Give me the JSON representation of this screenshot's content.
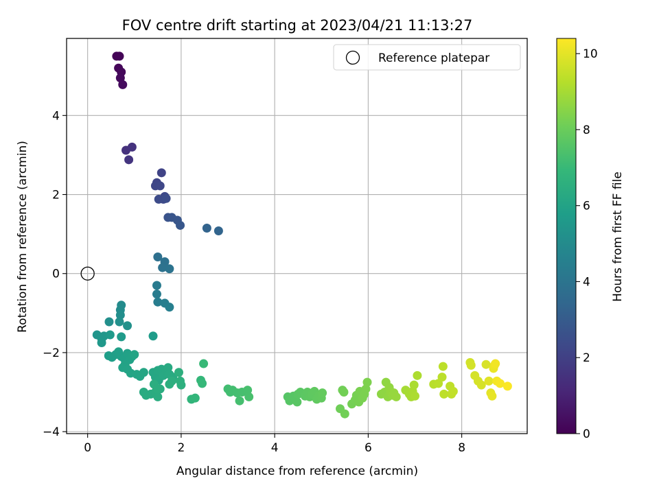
{
  "chart_data": {
    "type": "scatter",
    "title": "FOV centre drift starting at 2023/04/21 11:13:27",
    "xlabel": "Angular distance from reference (arcmin)",
    "ylabel": "Rotation from reference (arcmin)",
    "xlim": [
      -0.45,
      9.4
    ],
    "ylim": [
      -4.05,
      5.95
    ],
    "xticks": [
      0,
      2,
      4,
      6,
      8
    ],
    "yticks": [
      -4,
      -2,
      0,
      2,
      4
    ],
    "grid": true,
    "legend": {
      "location": "top-right",
      "entries": [
        "Reference platepar"
      ]
    },
    "reference_point": {
      "x": 0,
      "y": 0
    },
    "colorbar": {
      "label": "Hours from first FF file",
      "range": [
        0,
        10.4
      ],
      "ticks": [
        0,
        2,
        4,
        6,
        8,
        10
      ],
      "colormap": [
        "#440154",
        "#482878",
        "#3e4989",
        "#31688e",
        "#26828e",
        "#1f9e89",
        "#35b779",
        "#6ece58",
        "#b5de2b",
        "#fde725"
      ]
    },
    "points": [
      {
        "x": 0.62,
        "y": 5.5,
        "c": 0.05
      },
      {
        "x": 0.68,
        "y": 5.5,
        "c": 0.1
      },
      {
        "x": 0.66,
        "y": 5.2,
        "c": 0.15
      },
      {
        "x": 0.72,
        "y": 5.1,
        "c": 0.2
      },
      {
        "x": 0.7,
        "y": 4.95,
        "c": 0.25
      },
      {
        "x": 0.75,
        "y": 4.78,
        "c": 0.3
      },
      {
        "x": 0.82,
        "y": 3.12,
        "c": 1.5
      },
      {
        "x": 0.95,
        "y": 3.2,
        "c": 1.55
      },
      {
        "x": 0.88,
        "y": 2.88,
        "c": 1.6
      },
      {
        "x": 1.58,
        "y": 2.55,
        "c": 2.1
      },
      {
        "x": 1.48,
        "y": 2.3,
        "c": 2.15
      },
      {
        "x": 1.45,
        "y": 2.22,
        "c": 2.2
      },
      {
        "x": 1.55,
        "y": 2.22,
        "c": 2.25
      },
      {
        "x": 1.65,
        "y": 1.95,
        "c": 2.3
      },
      {
        "x": 1.62,
        "y": 1.88,
        "c": 2.35
      },
      {
        "x": 1.52,
        "y": 1.88,
        "c": 2.4
      },
      {
        "x": 1.68,
        "y": 1.9,
        "c": 2.45
      },
      {
        "x": 1.72,
        "y": 1.42,
        "c": 2.7
      },
      {
        "x": 1.8,
        "y": 1.42,
        "c": 2.75
      },
      {
        "x": 1.92,
        "y": 1.35,
        "c": 2.8
      },
      {
        "x": 1.98,
        "y": 1.22,
        "c": 2.85
      },
      {
        "x": 2.55,
        "y": 1.15,
        "c": 3.3
      },
      {
        "x": 2.8,
        "y": 1.08,
        "c": 3.35
      },
      {
        "x": 1.5,
        "y": 0.42,
        "c": 3.8
      },
      {
        "x": 1.65,
        "y": 0.3,
        "c": 3.85
      },
      {
        "x": 1.6,
        "y": 0.15,
        "c": 3.9
      },
      {
        "x": 1.75,
        "y": 0.12,
        "c": 3.95
      },
      {
        "x": 1.48,
        "y": -0.3,
        "c": 4.3
      },
      {
        "x": 1.48,
        "y": -0.52,
        "c": 4.35
      },
      {
        "x": 1.5,
        "y": -0.72,
        "c": 4.4
      },
      {
        "x": 1.65,
        "y": -0.75,
        "c": 4.45
      },
      {
        "x": 1.75,
        "y": -0.85,
        "c": 4.5
      },
      {
        "x": 0.72,
        "y": -0.8,
        "c": 5.0
      },
      {
        "x": 0.7,
        "y": -0.92,
        "c": 5.05
      },
      {
        "x": 0.7,
        "y": -1.05,
        "c": 5.1
      },
      {
        "x": 0.46,
        "y": -1.22,
        "c": 5.15
      },
      {
        "x": 0.68,
        "y": -1.22,
        "c": 5.2
      },
      {
        "x": 0.85,
        "y": -1.32,
        "c": 5.25
      },
      {
        "x": 0.2,
        "y": -1.55,
        "c": 5.4
      },
      {
        "x": 0.3,
        "y": -1.65,
        "c": 5.45
      },
      {
        "x": 0.35,
        "y": -1.58,
        "c": 5.5
      },
      {
        "x": 0.3,
        "y": -1.75,
        "c": 5.55
      },
      {
        "x": 0.48,
        "y": -1.55,
        "c": 5.6
      },
      {
        "x": 0.72,
        "y": -1.6,
        "c": 5.65
      },
      {
        "x": 1.4,
        "y": -1.58,
        "c": 5.7
      },
      {
        "x": 0.45,
        "y": -2.08,
        "c": 5.8
      },
      {
        "x": 0.52,
        "y": -2.12,
        "c": 5.82
      },
      {
        "x": 0.6,
        "y": -2.05,
        "c": 5.84
      },
      {
        "x": 0.66,
        "y": -1.98,
        "c": 5.86
      },
      {
        "x": 0.72,
        "y": -2.1,
        "c": 5.88
      },
      {
        "x": 0.78,
        "y": -2.15,
        "c": 5.9
      },
      {
        "x": 0.85,
        "y": -2.02,
        "c": 5.92
      },
      {
        "x": 0.9,
        "y": -2.18,
        "c": 5.94
      },
      {
        "x": 0.95,
        "y": -2.1,
        "c": 5.96
      },
      {
        "x": 0.8,
        "y": -2.3,
        "c": 5.98
      },
      {
        "x": 0.75,
        "y": -2.38,
        "c": 6.0
      },
      {
        "x": 0.85,
        "y": -2.42,
        "c": 6.02
      },
      {
        "x": 0.92,
        "y": -2.52,
        "c": 6.04
      },
      {
        "x": 1.0,
        "y": -2.05,
        "c": 6.06
      },
      {
        "x": 1.05,
        "y": -2.55,
        "c": 6.08
      },
      {
        "x": 1.12,
        "y": -2.6,
        "c": 6.1
      },
      {
        "x": 1.2,
        "y": -2.5,
        "c": 6.12
      },
      {
        "x": 1.4,
        "y": -2.5,
        "c": 6.14
      },
      {
        "x": 1.45,
        "y": -2.62,
        "c": 6.16
      },
      {
        "x": 1.5,
        "y": -2.45,
        "c": 6.18
      },
      {
        "x": 1.52,
        "y": -2.7,
        "c": 6.2
      },
      {
        "x": 1.58,
        "y": -2.42,
        "c": 6.22
      },
      {
        "x": 1.62,
        "y": -2.58,
        "c": 6.24
      },
      {
        "x": 1.68,
        "y": -2.45,
        "c": 6.26
      },
      {
        "x": 1.72,
        "y": -2.38,
        "c": 6.28
      },
      {
        "x": 1.75,
        "y": -2.55,
        "c": 6.3
      },
      {
        "x": 1.82,
        "y": -2.62,
        "c": 6.32
      },
      {
        "x": 1.2,
        "y": -3.0,
        "c": 6.34
      },
      {
        "x": 1.25,
        "y": -3.08,
        "c": 6.36
      },
      {
        "x": 1.35,
        "y": -3.05,
        "c": 6.38
      },
      {
        "x": 1.45,
        "y": -3.0,
        "c": 6.4
      },
      {
        "x": 1.5,
        "y": -3.12,
        "c": 6.42
      },
      {
        "x": 1.55,
        "y": -2.92,
        "c": 6.44
      },
      {
        "x": 1.42,
        "y": -2.8,
        "c": 6.46
      },
      {
        "x": 1.48,
        "y": -2.92,
        "c": 6.48
      },
      {
        "x": 1.75,
        "y": -2.8,
        "c": 6.5
      },
      {
        "x": 1.8,
        "y": -2.72,
        "c": 6.52
      },
      {
        "x": 1.95,
        "y": -2.5,
        "c": 6.54
      },
      {
        "x": 1.98,
        "y": -2.72,
        "c": 6.56
      },
      {
        "x": 2.0,
        "y": -2.82,
        "c": 6.58
      },
      {
        "x": 2.22,
        "y": -3.18,
        "c": 6.8
      },
      {
        "x": 2.3,
        "y": -3.15,
        "c": 6.85
      },
      {
        "x": 2.42,
        "y": -2.7,
        "c": 6.9
      },
      {
        "x": 2.45,
        "y": -2.78,
        "c": 6.95
      },
      {
        "x": 2.48,
        "y": -2.28,
        "c": 7.0
      },
      {
        "x": 3.0,
        "y": -2.92,
        "c": 7.2
      },
      {
        "x": 3.05,
        "y": -3.0,
        "c": 7.22
      },
      {
        "x": 3.1,
        "y": -2.95,
        "c": 7.24
      },
      {
        "x": 3.2,
        "y": -3.02,
        "c": 7.26
      },
      {
        "x": 3.25,
        "y": -3.22,
        "c": 7.28
      },
      {
        "x": 3.3,
        "y": -3.0,
        "c": 7.3
      },
      {
        "x": 3.42,
        "y": -2.95,
        "c": 7.32
      },
      {
        "x": 3.45,
        "y": -3.12,
        "c": 7.34
      },
      {
        "x": 4.28,
        "y": -3.12,
        "c": 7.6
      },
      {
        "x": 4.32,
        "y": -3.22,
        "c": 7.62
      },
      {
        "x": 4.4,
        "y": -3.1,
        "c": 7.64
      },
      {
        "x": 4.48,
        "y": -3.25,
        "c": 7.66
      },
      {
        "x": 4.5,
        "y": -3.05,
        "c": 7.68
      },
      {
        "x": 4.55,
        "y": -3.0,
        "c": 7.7
      },
      {
        "x": 4.65,
        "y": -3.1,
        "c": 7.72
      },
      {
        "x": 4.7,
        "y": -3.0,
        "c": 7.74
      },
      {
        "x": 4.75,
        "y": -3.12,
        "c": 7.76
      },
      {
        "x": 4.8,
        "y": -3.05,
        "c": 7.78
      },
      {
        "x": 4.85,
        "y": -2.98,
        "c": 7.8
      },
      {
        "x": 4.9,
        "y": -3.18,
        "c": 7.82
      },
      {
        "x": 4.95,
        "y": -3.08,
        "c": 7.84
      },
      {
        "x": 5.0,
        "y": -3.15,
        "c": 7.86
      },
      {
        "x": 5.02,
        "y": -3.02,
        "c": 7.88
      },
      {
        "x": 5.4,
        "y": -3.42,
        "c": 8.1
      },
      {
        "x": 5.45,
        "y": -2.95,
        "c": 8.12
      },
      {
        "x": 5.5,
        "y": -3.55,
        "c": 8.14
      },
      {
        "x": 5.48,
        "y": -3.0,
        "c": 8.16
      },
      {
        "x": 5.65,
        "y": -3.3,
        "c": 8.18
      },
      {
        "x": 5.72,
        "y": -3.2,
        "c": 8.2
      },
      {
        "x": 5.75,
        "y": -3.08,
        "c": 8.22
      },
      {
        "x": 5.8,
        "y": -3.25,
        "c": 8.24
      },
      {
        "x": 5.82,
        "y": -2.98,
        "c": 8.26
      },
      {
        "x": 5.88,
        "y": -3.15,
        "c": 8.28
      },
      {
        "x": 5.92,
        "y": -3.05,
        "c": 8.3
      },
      {
        "x": 5.95,
        "y": -2.92,
        "c": 8.32
      },
      {
        "x": 5.98,
        "y": -2.75,
        "c": 8.34
      },
      {
        "x": 6.28,
        "y": -3.05,
        "c": 8.6
      },
      {
        "x": 6.35,
        "y": -3.0,
        "c": 8.62
      },
      {
        "x": 6.38,
        "y": -2.75,
        "c": 8.64
      },
      {
        "x": 6.42,
        "y": -3.12,
        "c": 8.66
      },
      {
        "x": 6.45,
        "y": -2.88,
        "c": 8.68
      },
      {
        "x": 6.48,
        "y": -2.98,
        "c": 8.7
      },
      {
        "x": 6.52,
        "y": -3.08,
        "c": 8.72
      },
      {
        "x": 6.55,
        "y": -3.02,
        "c": 8.74
      },
      {
        "x": 6.6,
        "y": -3.12,
        "c": 8.76
      },
      {
        "x": 6.8,
        "y": -2.95,
        "c": 9.0
      },
      {
        "x": 6.88,
        "y": -3.05,
        "c": 9.02
      },
      {
        "x": 6.92,
        "y": -3.12,
        "c": 9.04
      },
      {
        "x": 6.95,
        "y": -2.98,
        "c": 9.06
      },
      {
        "x": 6.98,
        "y": -2.82,
        "c": 9.08
      },
      {
        "x": 7.0,
        "y": -3.1,
        "c": 9.1
      },
      {
        "x": 7.05,
        "y": -2.58,
        "c": 9.12
      },
      {
        "x": 7.4,
        "y": -2.8,
        "c": 9.3
      },
      {
        "x": 7.5,
        "y": -2.78,
        "c": 9.32
      },
      {
        "x": 7.58,
        "y": -2.62,
        "c": 9.34
      },
      {
        "x": 7.6,
        "y": -2.35,
        "c": 9.36
      },
      {
        "x": 7.62,
        "y": -3.05,
        "c": 9.38
      },
      {
        "x": 7.75,
        "y": -2.85,
        "c": 9.4
      },
      {
        "x": 7.78,
        "y": -3.05,
        "c": 9.42
      },
      {
        "x": 7.82,
        "y": -2.98,
        "c": 9.44
      },
      {
        "x": 8.18,
        "y": -2.25,
        "c": 9.7
      },
      {
        "x": 8.2,
        "y": -2.32,
        "c": 9.72
      },
      {
        "x": 8.28,
        "y": -2.58,
        "c": 9.74
      },
      {
        "x": 8.35,
        "y": -2.72,
        "c": 9.76
      },
      {
        "x": 8.42,
        "y": -2.82,
        "c": 9.78
      },
      {
        "x": 8.52,
        "y": -2.3,
        "c": 9.8
      },
      {
        "x": 8.58,
        "y": -2.72,
        "c": 9.95
      },
      {
        "x": 8.62,
        "y": -3.02,
        "c": 10.0
      },
      {
        "x": 8.65,
        "y": -3.1,
        "c": 10.05
      },
      {
        "x": 8.68,
        "y": -2.4,
        "c": 10.1
      },
      {
        "x": 8.7,
        "y": -2.32,
        "c": 10.15
      },
      {
        "x": 8.72,
        "y": -2.28,
        "c": 10.2
      },
      {
        "x": 8.75,
        "y": -2.72,
        "c": 10.25
      },
      {
        "x": 8.82,
        "y": -2.78,
        "c": 10.3
      },
      {
        "x": 8.98,
        "y": -2.85,
        "c": 10.35
      }
    ]
  }
}
